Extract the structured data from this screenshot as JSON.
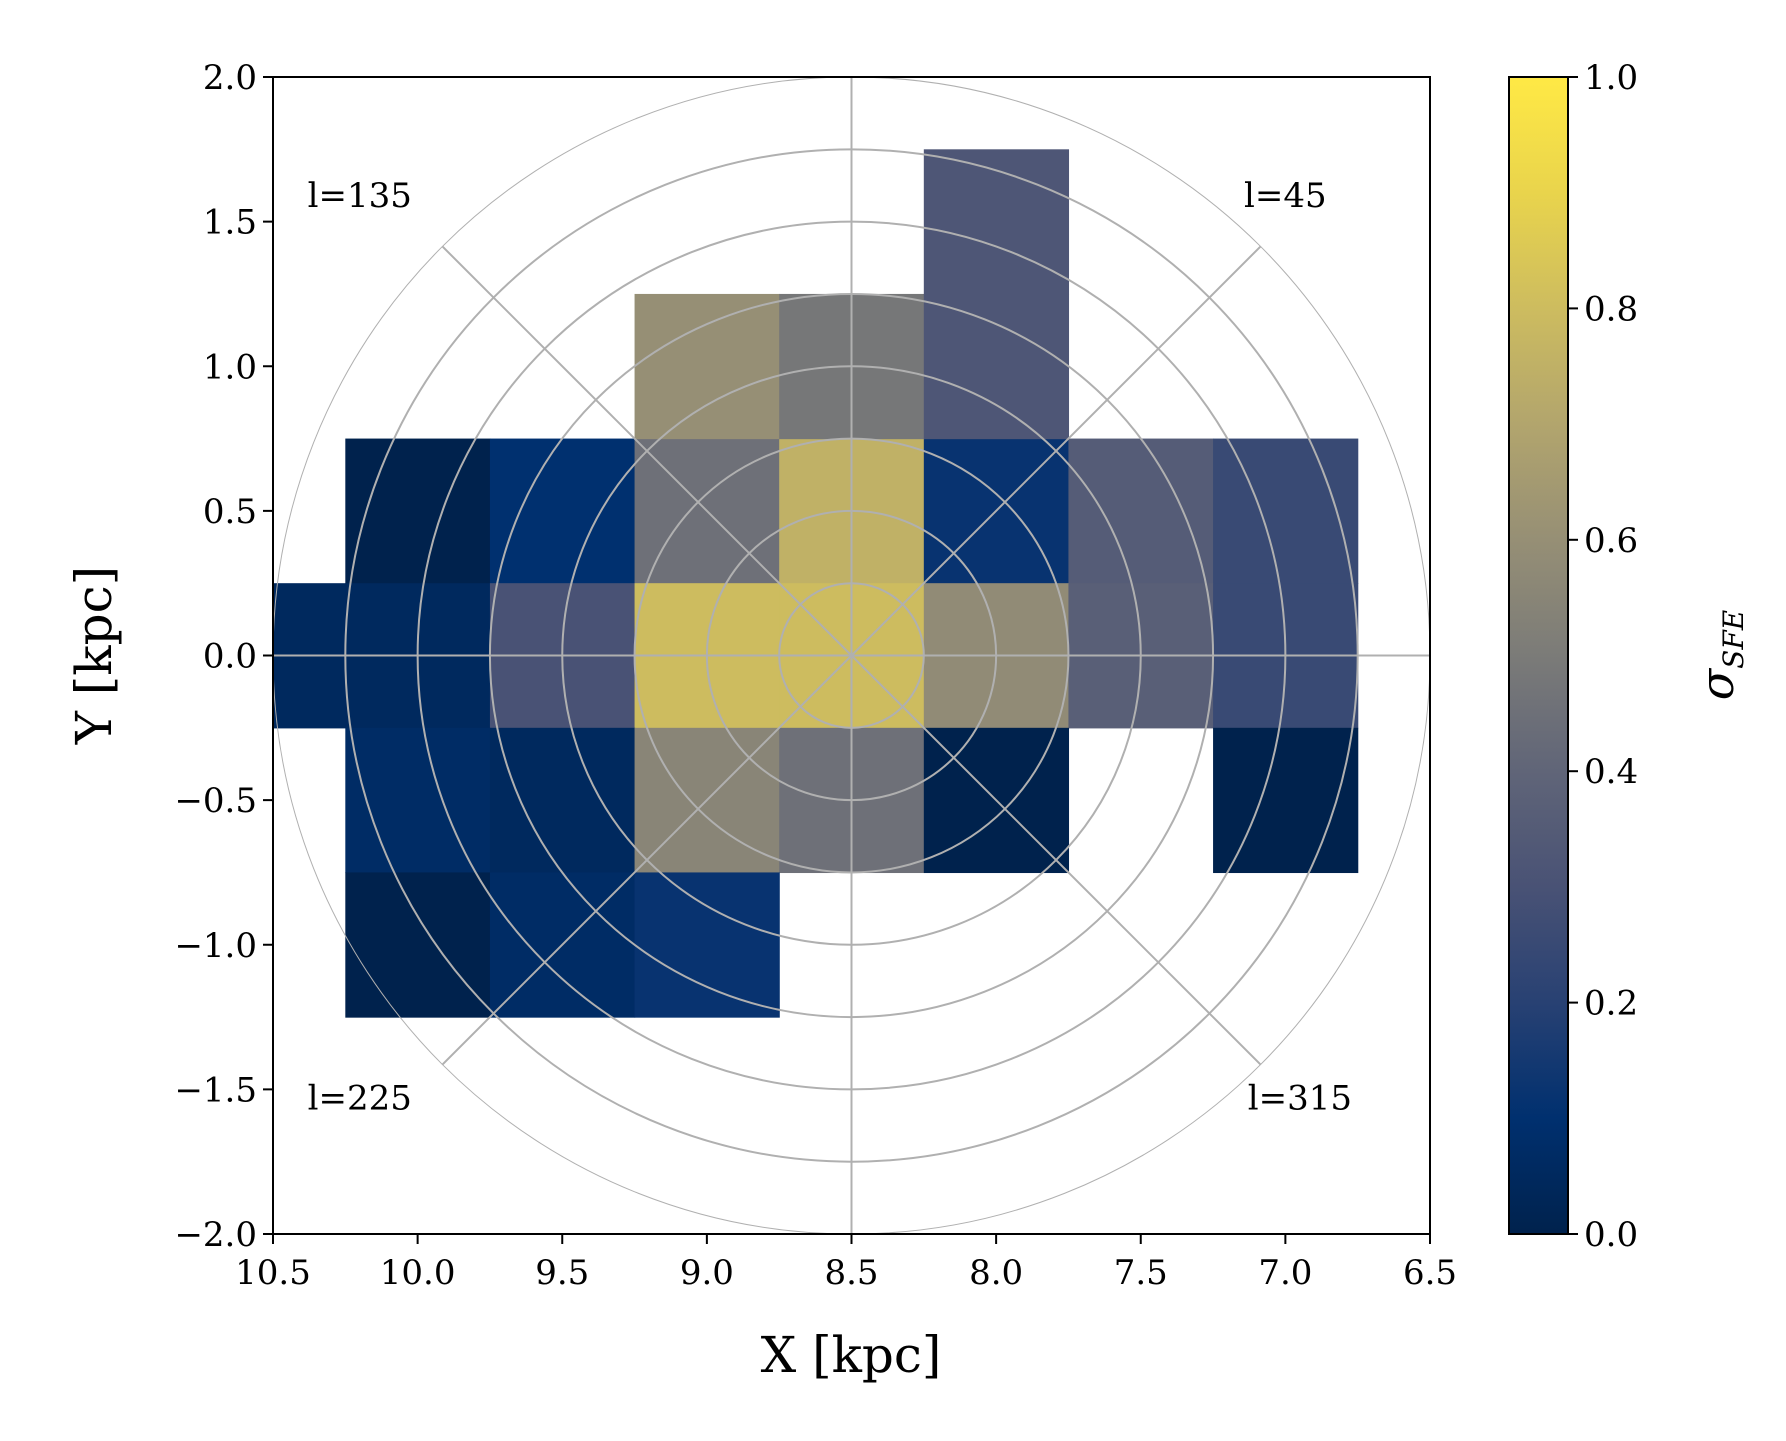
{
  "chart_data": {
    "type": "heatmap",
    "xlabel": "X [kpc]",
    "ylabel": "Y [kpc]",
    "xlim": [
      10.5,
      6.5
    ],
    "ylim": [
      -2.0,
      2.0
    ],
    "x_ticks": [
      "10.5",
      "10.0",
      "9.5",
      "9.0",
      "8.5",
      "8.0",
      "7.5",
      "7.0",
      "6.5"
    ],
    "y_ticks": [
      "2.0",
      "1.5",
      "1.0",
      "0.5",
      "0.0",
      "−0.5",
      "−1.0",
      "−1.5",
      "−2.0"
    ],
    "x_tick_values": [
      10.5,
      10.0,
      9.5,
      9.0,
      8.5,
      8.0,
      7.5,
      7.0,
      6.5
    ],
    "y_tick_values": [
      2.0,
      1.5,
      1.0,
      0.5,
      0.0,
      -0.5,
      -1.0,
      -1.5,
      -2.0
    ],
    "colorbar": {
      "label": "σ",
      "label_sub": "SFE",
      "range": [
        0.0,
        1.0
      ],
      "ticks": [
        "0.0",
        "0.2",
        "0.4",
        "0.6",
        "0.8",
        "1.0"
      ],
      "tick_values": [
        0.0,
        0.2,
        0.4,
        0.6,
        0.8,
        1.0
      ],
      "colormap": "cividis"
    },
    "polar_grid": {
      "center_x": 8.5,
      "center_y": 0.0,
      "radii_kpc": [
        0.25,
        0.5,
        0.75,
        1.0,
        1.25,
        1.5,
        1.75,
        2.0
      ],
      "spokes_deg": [
        0,
        45,
        90,
        135,
        180,
        225,
        270,
        315
      ],
      "color": "#b0b0b0"
    },
    "annotations": [
      {
        "text": "l=135",
        "x": 10.2,
        "y": 1.55
      },
      {
        "text": "l=45",
        "x": 7.0,
        "y": 1.55
      },
      {
        "text": "l=225",
        "x": 10.2,
        "y": -1.57
      },
      {
        "text": "l=315",
        "x": 6.95,
        "y": -1.57
      }
    ],
    "cells": [
      {
        "x0": 10.5,
        "x1": 10.25,
        "y0": -0.25,
        "y1": 0.25,
        "value": 0.05
      },
      {
        "x0": 10.25,
        "x1": 9.75,
        "y0": 0.25,
        "y1": 0.75,
        "value": 0.0
      },
      {
        "x0": 9.75,
        "x1": 9.25,
        "y0": 0.25,
        "y1": 0.75,
        "value": 0.1
      },
      {
        "x0": 9.25,
        "x1": 8.75,
        "y0": 0.25,
        "y1": 0.75,
        "value": 0.45
      },
      {
        "x0": 8.75,
        "x1": 8.25,
        "y0": 0.25,
        "y1": 0.75,
        "value": 0.75
      },
      {
        "x0": 8.25,
        "x1": 7.75,
        "y0": 0.25,
        "y1": 0.75,
        "value": 0.12
      },
      {
        "x0": 7.75,
        "x1": 7.25,
        "y0": 0.25,
        "y1": 0.75,
        "value": 0.35
      },
      {
        "x0": 7.25,
        "x1": 6.75,
        "y0": 0.25,
        "y1": 0.75,
        "value": 0.25
      },
      {
        "x0": 9.25,
        "x1": 8.75,
        "y0": 0.75,
        "y1": 1.25,
        "value": 0.6
      },
      {
        "x0": 8.75,
        "x1": 8.25,
        "y0": 0.75,
        "y1": 1.25,
        "value": 0.48
      },
      {
        "x0": 8.25,
        "x1": 7.75,
        "y0": 0.75,
        "y1": 1.25,
        "value": 0.32
      },
      {
        "x0": 8.25,
        "x1": 7.75,
        "y0": 1.25,
        "y1": 1.75,
        "value": 0.32
      },
      {
        "x0": 10.25,
        "x1": 9.75,
        "y0": -0.25,
        "y1": 0.25,
        "value": 0.05
      },
      {
        "x0": 9.75,
        "x1": 9.25,
        "y0": -0.25,
        "y1": 0.25,
        "value": 0.3
      },
      {
        "x0": 9.25,
        "x1": 8.75,
        "y0": -0.25,
        "y1": 0.25,
        "value": 0.8
      },
      {
        "x0": 8.75,
        "x1": 8.25,
        "y0": -0.25,
        "y1": 0.25,
        "value": 0.8
      },
      {
        "x0": 8.25,
        "x1": 7.75,
        "y0": -0.25,
        "y1": 0.25,
        "value": 0.58
      },
      {
        "x0": 7.75,
        "x1": 7.25,
        "y0": -0.25,
        "y1": 0.25,
        "value": 0.37
      },
      {
        "x0": 7.25,
        "x1": 6.75,
        "y0": -0.25,
        "y1": 0.25,
        "value": 0.25
      },
      {
        "x0": 10.25,
        "x1": 9.75,
        "y0": -0.75,
        "y1": -0.25,
        "value": 0.07
      },
      {
        "x0": 9.75,
        "x1": 9.25,
        "y0": -0.75,
        "y1": -0.25,
        "value": 0.05
      },
      {
        "x0": 9.25,
        "x1": 8.75,
        "y0": -0.75,
        "y1": -0.25,
        "value": 0.55
      },
      {
        "x0": 8.75,
        "x1": 8.25,
        "y0": -0.75,
        "y1": -0.25,
        "value": 0.45
      },
      {
        "x0": 8.25,
        "x1": 7.75,
        "y0": -0.75,
        "y1": -0.25,
        "value": 0.0
      },
      {
        "x0": 7.25,
        "x1": 6.75,
        "y0": -0.75,
        "y1": -0.25,
        "value": 0.0
      },
      {
        "x0": 10.25,
        "x1": 9.75,
        "y0": -1.25,
        "y1": -0.75,
        "value": 0.0
      },
      {
        "x0": 9.75,
        "x1": 9.25,
        "y0": -1.25,
        "y1": -0.75,
        "value": 0.07
      },
      {
        "x0": 9.25,
        "x1": 8.75,
        "y0": -1.25,
        "y1": -0.75,
        "value": 0.12
      }
    ]
  }
}
